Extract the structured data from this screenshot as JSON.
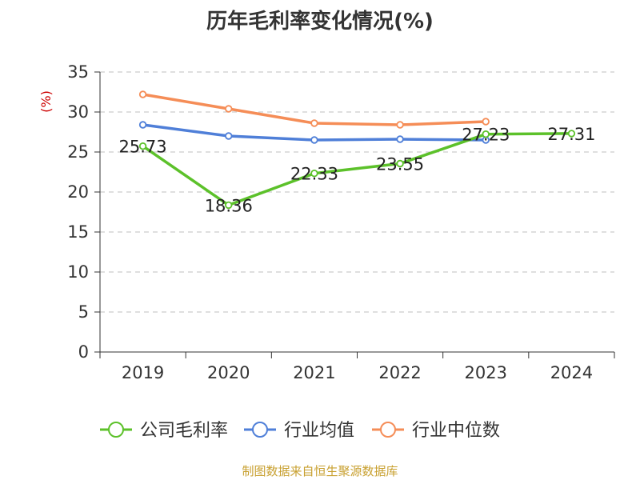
{
  "chart_data": {
    "type": "line",
    "title": "历年毛利率变化情况(%)",
    "ylabel": "(%)",
    "categories": [
      "2019",
      "2020",
      "2021",
      "2022",
      "2023",
      "2024"
    ],
    "y_ticks": [
      "0",
      "5",
      "10",
      "15",
      "20",
      "25",
      "30",
      "35"
    ],
    "ylim": [
      0,
      35
    ],
    "grid": true,
    "legend_position": "bottom",
    "series": [
      {
        "name": "公司毛利率",
        "color": "#5cc12a",
        "values": [
          25.73,
          18.36,
          22.33,
          23.55,
          27.23,
          27.31
        ],
        "labels": [
          "25.73",
          "18.36",
          "22.33",
          "23.55",
          "27.23",
          "27.31"
        ]
      },
      {
        "name": "行业均值",
        "color": "#4f7fd8",
        "values": [
          28.4,
          27.0,
          26.5,
          26.6,
          26.5,
          null
        ]
      },
      {
        "name": "行业中位数",
        "color": "#f58d57",
        "values": [
          32.2,
          30.4,
          28.6,
          28.4,
          28.8,
          null
        ]
      }
    ]
  },
  "source": "制图数据来自恒生聚源数据库"
}
